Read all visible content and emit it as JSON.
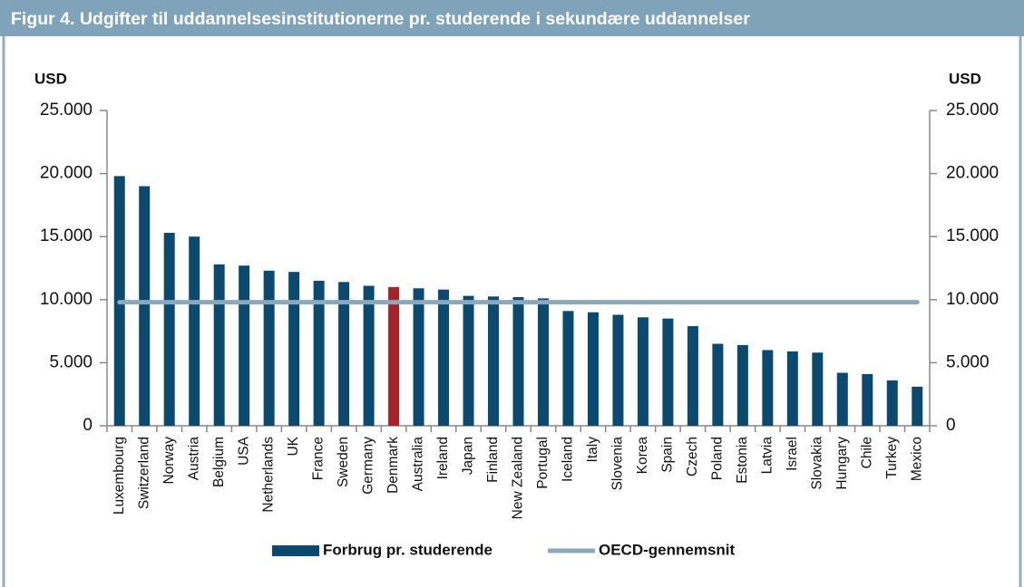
{
  "chart_data": {
    "type": "bar",
    "title": "Figur 4. Udgifter til uddannelsesinstitutionerne pr. studerende i sekundære uddannelser",
    "ylabel": "USD",
    "y2label": "USD",
    "categories": [
      "Luxembourg",
      "Switzerland",
      "Norway",
      "Austria",
      "Belgium",
      "USA",
      "Netherlands",
      "UK",
      "France",
      "Sweden",
      "Germany",
      "Denmark",
      "Australia",
      "Ireland",
      "Japan",
      "Finland",
      "New Zealand",
      "Portugal",
      "Iceland",
      "Italy",
      "Slovenia",
      "Korea",
      "Spain",
      "Czech",
      "Poland",
      "Estonia",
      "Latvia",
      "Israel",
      "Slovakia",
      "Hungary",
      "Chile",
      "Turkey",
      "Mexico"
    ],
    "series": [
      {
        "name": "Forbrug pr. studerende",
        "type": "bar",
        "color": "#0b4a6e",
        "colors": [
          "#0b4a6e",
          "#0b4a6e",
          "#0b4a6e",
          "#0b4a6e",
          "#0b4a6e",
          "#0b4a6e",
          "#0b4a6e",
          "#0b4a6e",
          "#0b4a6e",
          "#0b4a6e",
          "#0b4a6e",
          "#a3232a",
          "#0b4a6e",
          "#0b4a6e",
          "#0b4a6e",
          "#0b4a6e",
          "#0b4a6e",
          "#0b4a6e",
          "#0b4a6e",
          "#0b4a6e",
          "#0b4a6e",
          "#0b4a6e",
          "#0b4a6e",
          "#0b4a6e",
          "#0b4a6e",
          "#0b4a6e",
          "#0b4a6e",
          "#0b4a6e",
          "#0b4a6e",
          "#0b4a6e",
          "#0b4a6e",
          "#0b4a6e",
          "#0b4a6e"
        ],
        "values": [
          19800,
          19000,
          15300,
          15000,
          12800,
          12700,
          12300,
          12200,
          11500,
          11400,
          11100,
          11000,
          10900,
          10800,
          10300,
          10250,
          10200,
          10100,
          9100,
          9000,
          8800,
          8600,
          8500,
          7900,
          6500,
          6400,
          6000,
          5900,
          5800,
          4200,
          4100,
          3600,
          3100
        ]
      },
      {
        "name": "OECD-gennemsnit",
        "type": "line",
        "color": "#8aa9bc",
        "values": [
          9800,
          9800,
          9800,
          9800,
          9800,
          9800,
          9800,
          9800,
          9800,
          9800,
          9800,
          9800,
          9800,
          9800,
          9800,
          9800,
          9800,
          9800,
          9800,
          9800,
          9800,
          9800,
          9800,
          9800,
          9800,
          9800,
          9800,
          9800,
          9800,
          9800,
          9800,
          9800,
          9800
        ]
      }
    ],
    "ylim": [
      0,
      25000
    ],
    "yticks": [
      0,
      {
        "value": 5000,
        "label": "5.000"
      },
      {
        "value": 10000,
        "label": "10.000"
      },
      {
        "value": 15000,
        "label": "15.000"
      },
      {
        "value": 20000,
        "label": "20.000"
      },
      {
        "value": 25000,
        "label": "25.000"
      }
    ],
    "y2lim": [
      0,
      25000
    ],
    "y2ticks": [
      0,
      {
        "value": 5000,
        "label": "5.000"
      },
      {
        "value": 10000,
        "label": "10.000"
      },
      {
        "value": 15000,
        "label": "15.000"
      },
      {
        "value": 20000,
        "label": "20.000"
      },
      {
        "value": 25000,
        "label": "25.000"
      }
    ],
    "grid": false,
    "legend": "bottom"
  }
}
